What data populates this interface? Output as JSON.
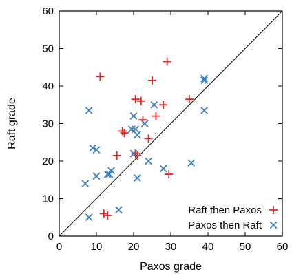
{
  "chart_data": {
    "type": "scatter",
    "xlabel": "Paxos grade",
    "ylabel": "Raft grade",
    "xlim": [
      0,
      60
    ],
    "ylim": [
      0,
      60
    ],
    "xticks": [
      "0",
      "10",
      "20",
      "30",
      "40",
      "50",
      "60"
    ],
    "yticks": [
      "0",
      "10",
      "20",
      "30",
      "40",
      "50",
      "60"
    ],
    "diagonal_line": true,
    "legend_position": "bottom-right",
    "series": [
      {
        "name": "Raft then Paxos",
        "marker": "plus",
        "color": "#e8231f",
        "points": [
          [
            11,
            42.5
          ],
          [
            29,
            46.5
          ],
          [
            25,
            41.5
          ],
          [
            20.5,
            36.5
          ],
          [
            22,
            36
          ],
          [
            35,
            36.5
          ],
          [
            28,
            35
          ],
          [
            17,
            28
          ],
          [
            17.5,
            27.5
          ],
          [
            26,
            32
          ],
          [
            22.5,
            31
          ],
          [
            24,
            26
          ],
          [
            15.5,
            21.5
          ],
          [
            20.5,
            22
          ],
          [
            21,
            21.5
          ],
          [
            29.5,
            16.5
          ],
          [
            12,
            6
          ],
          [
            13,
            5.5
          ]
        ]
      },
      {
        "name": "Paxos then Raft",
        "marker": "cross",
        "color": "#3a7fbf",
        "points": [
          [
            39,
            42
          ],
          [
            39,
            41.5
          ],
          [
            8,
            33.5
          ],
          [
            39,
            33.5
          ],
          [
            25.5,
            35
          ],
          [
            20,
            32
          ],
          [
            23,
            30
          ],
          [
            19.5,
            28.5
          ],
          [
            20.5,
            28.5
          ],
          [
            21,
            27
          ],
          [
            20,
            22
          ],
          [
            9,
            23.5
          ],
          [
            10,
            23
          ],
          [
            14,
            17.5
          ],
          [
            13,
            16.5
          ],
          [
            13.5,
            16.5
          ],
          [
            10,
            16
          ],
          [
            7,
            14
          ],
          [
            24,
            20
          ],
          [
            28,
            18
          ],
          [
            35.5,
            19.5
          ],
          [
            21,
            15.5
          ],
          [
            16,
            7
          ],
          [
            8,
            5
          ]
        ]
      }
    ]
  }
}
